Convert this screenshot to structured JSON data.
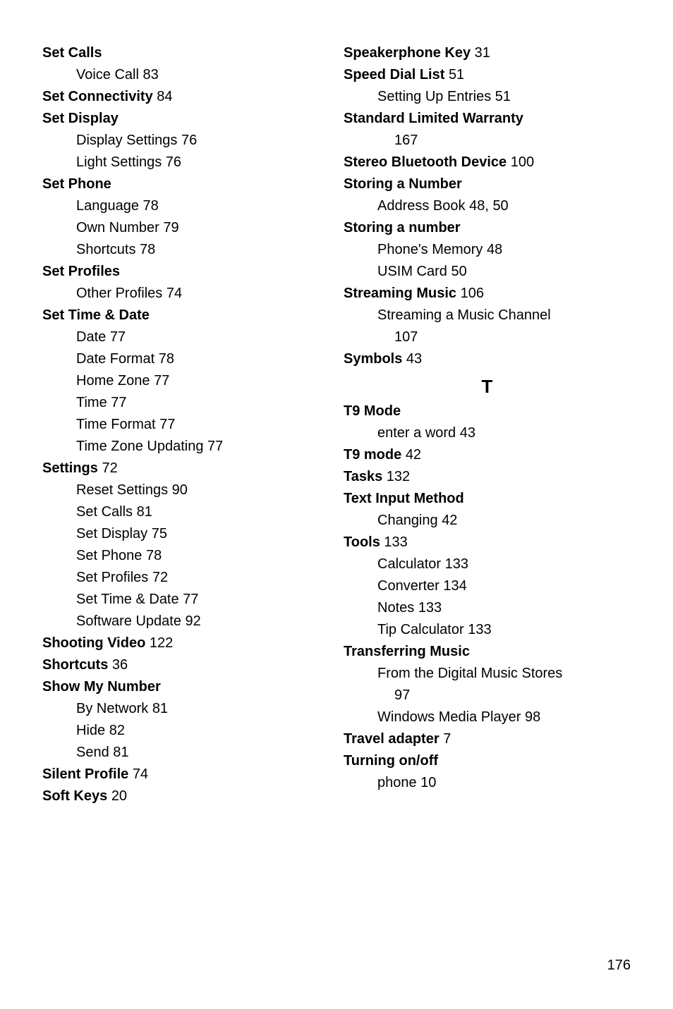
{
  "left": [
    {
      "type": "head",
      "text": "Set Calls"
    },
    {
      "type": "sub",
      "text": "Voice Call",
      "page": "83"
    },
    {
      "type": "head",
      "text": "Set Connectivity",
      "page": "84"
    },
    {
      "type": "head",
      "text": "Set Display"
    },
    {
      "type": "sub",
      "text": "Display Settings",
      "page": "76"
    },
    {
      "type": "sub",
      "text": "Light Settings",
      "page": "76"
    },
    {
      "type": "head",
      "text": "Set Phone"
    },
    {
      "type": "sub",
      "text": "Language",
      "page": "78"
    },
    {
      "type": "sub",
      "text": "Own Number",
      "page": "79"
    },
    {
      "type": "sub",
      "text": "Shortcuts",
      "page": "78"
    },
    {
      "type": "head",
      "text": "Set Profiles"
    },
    {
      "type": "sub",
      "text": "Other Profiles",
      "page": "74"
    },
    {
      "type": "head",
      "text": "Set Time & Date"
    },
    {
      "type": "sub",
      "text": "Date",
      "page": "77"
    },
    {
      "type": "sub",
      "text": "Date Format",
      "page": "78"
    },
    {
      "type": "sub",
      "text": "Home Zone",
      "page": "77"
    },
    {
      "type": "sub",
      "text": "Time",
      "page": "77"
    },
    {
      "type": "sub",
      "text": "Time Format",
      "page": "77"
    },
    {
      "type": "sub",
      "text": "Time Zone Updating",
      "page": "77"
    },
    {
      "type": "head",
      "text": "Settings",
      "page": "72"
    },
    {
      "type": "sub",
      "text": "Reset Settings",
      "page": "90"
    },
    {
      "type": "sub",
      "text": "Set Calls",
      "page": "81"
    },
    {
      "type": "sub",
      "text": "Set Display",
      "page": "75"
    },
    {
      "type": "sub",
      "text": "Set Phone",
      "page": "78"
    },
    {
      "type": "sub",
      "text": "Set Profiles",
      "page": "72"
    },
    {
      "type": "sub",
      "text": "Set Time & Date",
      "page": "77"
    },
    {
      "type": "sub",
      "text": "Software Update",
      "page": "92"
    },
    {
      "type": "head",
      "text": "Shooting Video",
      "page": "122"
    },
    {
      "type": "head",
      "text": "Shortcuts",
      "page": "36"
    },
    {
      "type": "head",
      "text": "Show My Number"
    },
    {
      "type": "sub",
      "text": "By Network",
      "page": "81"
    },
    {
      "type": "sub",
      "text": "Hide",
      "page": "82"
    },
    {
      "type": "sub",
      "text": "Send",
      "page": "81"
    },
    {
      "type": "head",
      "text": "Silent Profile",
      "page": "74"
    },
    {
      "type": "head",
      "text": "Soft Keys",
      "page": "20"
    }
  ],
  "right": [
    {
      "type": "head",
      "text": "Speakerphone Key",
      "page": "31"
    },
    {
      "type": "head",
      "text": "Speed Dial List",
      "page": "51"
    },
    {
      "type": "sub",
      "text": "Setting Up Entries",
      "page": "51"
    },
    {
      "type": "head",
      "text": "Standard Limited Warranty"
    },
    {
      "type": "wrap",
      "text": "167"
    },
    {
      "type": "head",
      "text": "Stereo Bluetooth Device",
      "page": "100"
    },
    {
      "type": "head",
      "text": "Storing a Number"
    },
    {
      "type": "sub",
      "text": "Address Book",
      "page": "48, 50"
    },
    {
      "type": "head",
      "text": "Storing a number"
    },
    {
      "type": "sub",
      "text": "Phone's Memory",
      "page": "48"
    },
    {
      "type": "sub",
      "text": "USIM Card",
      "page": "50"
    },
    {
      "type": "head",
      "text": "Streaming Music",
      "page": "106"
    },
    {
      "type": "sub",
      "text": "Streaming a Music Channel"
    },
    {
      "type": "wrap",
      "text": "107"
    },
    {
      "type": "head",
      "text": "Symbols",
      "page": "43"
    },
    {
      "type": "letter",
      "text": "T"
    },
    {
      "type": "head",
      "text": "T9 Mode"
    },
    {
      "type": "sub",
      "text": "enter a word",
      "page": "43"
    },
    {
      "type": "head",
      "text": "T9 mode",
      "page": "42"
    },
    {
      "type": "head",
      "text": "Tasks",
      "page": "132"
    },
    {
      "type": "head",
      "text": "Text Input Method"
    },
    {
      "type": "sub",
      "text": "Changing",
      "page": "42"
    },
    {
      "type": "head",
      "text": "Tools",
      "page": "133"
    },
    {
      "type": "sub",
      "text": "Calculator",
      "page": "133"
    },
    {
      "type": "sub",
      "text": "Converter",
      "page": "134"
    },
    {
      "type": "sub",
      "text": "Notes",
      "page": "133"
    },
    {
      "type": "sub",
      "text": "Tip Calculator",
      "page": "133"
    },
    {
      "type": "head",
      "text": "Transferring Music"
    },
    {
      "type": "sub",
      "text": "From the Digital Music Stores"
    },
    {
      "type": "wrap",
      "text": "97"
    },
    {
      "type": "sub",
      "text": "Windows Media Player",
      "page": "98"
    },
    {
      "type": "head",
      "text": "Travel adapter",
      "page": "7"
    },
    {
      "type": "head",
      "text": "Turning on/off"
    },
    {
      "type": "sub",
      "text": "phone",
      "page": "10"
    }
  ],
  "pageNumber": "176"
}
